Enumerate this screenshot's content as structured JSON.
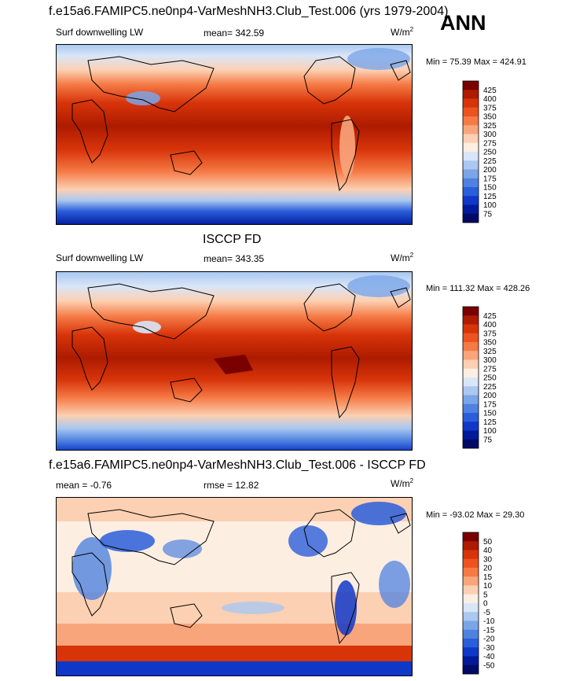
{
  "season": "ANN",
  "units_base": "W/m",
  "units_exp": "2",
  "panels": [
    {
      "title": "f.e15a6.FAMIPC5.ne0np4-VarMeshNH3.Club_Test.006 (yrs 1979-2004)",
      "left_label": "Surf downwelling LW",
      "center_label": "mean= 342.59",
      "minmax": "Min =  75.39 Max = 424.91",
      "colorbar_labels": [
        "425",
        "400",
        "375",
        "350",
        "325",
        "300",
        "275",
        "250",
        "225",
        "200",
        "175",
        "150",
        "125",
        "100",
        "75"
      ]
    },
    {
      "title": "ISCCP FD",
      "left_label": "Surf downwelling LW",
      "center_label": "mean= 343.35",
      "minmax": "Min = 111.32 Max = 428.26",
      "colorbar_labels": [
        "425",
        "400",
        "375",
        "350",
        "325",
        "300",
        "275",
        "250",
        "225",
        "200",
        "175",
        "150",
        "125",
        "100",
        "75"
      ]
    },
    {
      "title": "f.e15a6.FAMIPC5.ne0np4-VarMeshNH3.Club_Test.006 - ISCCP FD",
      "left_label": "mean =  -0.76",
      "center_label": "rmse =  12.82",
      "minmax": "Min = -93.02 Max =  29.30",
      "colorbar_labels": [
        "50",
        "40",
        "30",
        "20",
        "15",
        "10",
        "5",
        "0",
        "-5",
        "-10",
        "-15",
        "-20",
        "-30",
        "-40",
        "-50"
      ]
    }
  ],
  "palette": [
    "#7a0000",
    "#ad1b00",
    "#d8340a",
    "#ec5320",
    "#f57a45",
    "#f9a57c",
    "#fcd0b2",
    "#fdeee2",
    "#d9e6f8",
    "#aac8f0",
    "#7aa6e8",
    "#4f82e0",
    "#2a5edb",
    "#1038c8",
    "#001a9a",
    "#000a66"
  ],
  "chart_data": [
    {
      "type": "heatmap",
      "title": "f.e15a6.FAMIPC5.ne0np4-VarMeshNH3.Club_Test.006 (yrs 1979-2004)",
      "variable": "Surf downwelling LW",
      "units": "W/m2",
      "mean": 342.59,
      "min": 75.39,
      "max": 424.91,
      "levels": [
        75,
        100,
        125,
        150,
        175,
        200,
        225,
        250,
        275,
        300,
        325,
        350,
        375,
        400,
        425
      ]
    },
    {
      "type": "heatmap",
      "title": "ISCCP FD",
      "variable": "Surf downwelling LW",
      "units": "W/m2",
      "mean": 343.35,
      "min": 111.32,
      "max": 428.26,
      "levels": [
        75,
        100,
        125,
        150,
        175,
        200,
        225,
        250,
        275,
        300,
        325,
        350,
        375,
        400,
        425
      ]
    },
    {
      "type": "heatmap",
      "title": "f.e15a6.FAMIPC5.ne0np4-VarMeshNH3.Club_Test.006 - ISCCP FD",
      "units": "W/m2",
      "mean": -0.76,
      "rmse": 12.82,
      "min": -93.02,
      "max": 29.3,
      "levels": [
        -50,
        -40,
        -30,
        -20,
        -15,
        -10,
        -5,
        0,
        5,
        10,
        15,
        20,
        30,
        40,
        50
      ]
    }
  ]
}
